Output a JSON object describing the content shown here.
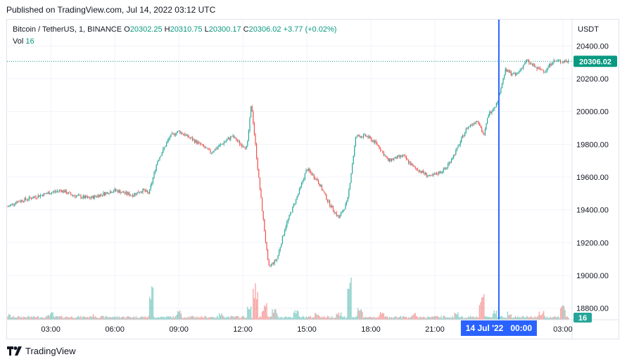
{
  "published": "Published on TradingView.com, Jul 14, 2022 03:12 UTC",
  "legend": {
    "symbol": "Bitcoin / TetherUS, 1, BINANCE",
    "o_label": "O",
    "o_value": "20302.25",
    "h_label": "H",
    "h_value": "20310.75",
    "l_label": "L",
    "l_value": "20300.17",
    "c_label": "C",
    "c_value": "20306.02",
    "change": "+3.77 (+0.02%)",
    "vol_label": "Vol",
    "vol_value": "16"
  },
  "currency": "USDT",
  "last_price_label": "20306.02",
  "volume_badge": "16",
  "crosshair_label": "14 Jul '22   00:00",
  "brand": "TradingView",
  "colors": {
    "up": "#26a69a",
    "down": "#ef5350",
    "crosshair": "#2962ff",
    "price_tag": "#089981",
    "badge": "#26a69a"
  },
  "chart_data": {
    "type": "candlestick",
    "title": "Bitcoin / TetherUS, 1, BINANCE",
    "y_unit": "USDT",
    "ylim": [
      18730,
      20560
    ],
    "y_ticks": [
      18800,
      19000,
      19200,
      19400,
      19600,
      19800,
      20000,
      20200,
      20400
    ],
    "y_tick_labels": [
      "18800.00",
      "19000.00",
      "19200.00",
      "19400.00",
      "19600.00",
      "19800.00",
      "20000.00",
      "20200.00",
      "20400.00"
    ],
    "x_tick_labels": [
      "03:00",
      "06:00",
      "09:00",
      "12:00",
      "15:00",
      "18:00",
      "21:00",
      "03:00"
    ],
    "x_tick_hours": [
      3,
      6,
      9,
      12,
      15,
      18,
      21,
      27
    ],
    "x_range_hours": [
      0.95,
      27.4
    ],
    "crosshair_hour": 24,
    "last_price": 20306.02,
    "series": [
      {
        "name": "price (approx.)",
        "hour": [
          1.0,
          1.4,
          2.0,
          2.8,
          3.5,
          4.0,
          4.8,
          5.5,
          6.0,
          6.8,
          7.3,
          7.6,
          8.0,
          8.6,
          9.0,
          9.5,
          10.0,
          10.5,
          11.0,
          11.5,
          11.9,
          12.2,
          12.4,
          12.7,
          13.2,
          13.6,
          14.0,
          14.6,
          15.0,
          15.5,
          16.0,
          16.5,
          16.9,
          17.3,
          17.8,
          18.3,
          18.8,
          19.5,
          20.0,
          20.8,
          21.5,
          22.0,
          22.5,
          23.0,
          23.3,
          23.5,
          23.9,
          24.3,
          24.8,
          25.3,
          25.8,
          26.2,
          26.5
        ],
        "close": [
          19420,
          19450,
          19470,
          19500,
          19520,
          19490,
          19470,
          19500,
          19520,
          19490,
          19520,
          19500,
          19700,
          19850,
          19880,
          19840,
          19800,
          19750,
          19800,
          19850,
          19800,
          19780,
          20050,
          19650,
          19050,
          19100,
          19300,
          19500,
          19650,
          19580,
          19450,
          19350,
          19450,
          19850,
          19850,
          19800,
          19700,
          19730,
          19660,
          19600,
          19650,
          19760,
          19900,
          19950,
          19850,
          19980,
          20050,
          20250,
          20220,
          20310,
          20260,
          20250,
          20306
        ]
      },
      {
        "name": "Vol (approx.)",
        "hour": [
          1.0,
          3.0,
          5.0,
          7.7,
          9.0,
          11.0,
          12.3,
          12.6,
          13.0,
          13.5,
          14.5,
          15.5,
          16.5,
          17.0,
          17.5,
          18.5,
          20.0,
          22.0,
          23.2,
          23.8,
          24.5,
          26.0,
          27.0
        ],
        "volume": [
          6,
          8,
          6,
          38,
          10,
          7,
          14,
          38,
          18,
          12,
          10,
          8,
          9,
          52,
          12,
          8,
          7,
          9,
          30,
          12,
          10,
          9,
          16
        ]
      }
    ]
  }
}
